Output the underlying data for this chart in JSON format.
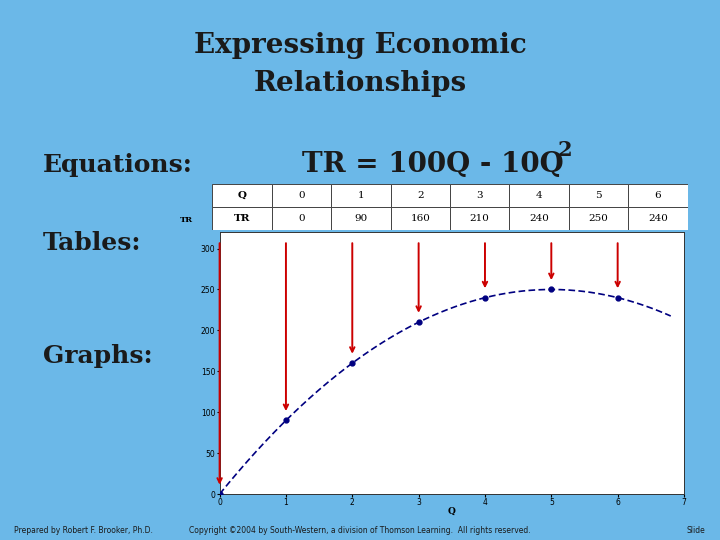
{
  "title_line1": "Expressing Economic",
  "title_line2": "Relationships",
  "equations_label": "Equations:",
  "tables_label": "Tables:",
  "graphs_label": "Graphs:",
  "table_q": [
    0,
    1,
    2,
    3,
    4,
    5,
    6
  ],
  "table_tr": [
    0,
    90,
    160,
    210,
    240,
    250,
    240
  ],
  "graph_q": [
    0,
    1,
    2,
    3,
    4,
    5,
    6
  ],
  "graph_tr": [
    0,
    90,
    160,
    210,
    240,
    250,
    240
  ],
  "background_color": "#6BB8E8",
  "table_bg": "#FFFFFF",
  "graph_bg": "#FFFFFF",
  "footer_left": "Prepared by Robert F. Brooker, Ph.D.",
  "footer_center": "Copyright ©2004 by South-Western, a division of Thomson Learning.  All rights reserved.",
  "footer_right": "Slide",
  "arrow_color": "#CC0000",
  "dot_color": "#000080",
  "line_color": "#000080",
  "title_fontsize": 20,
  "label_fontsize": 18,
  "equation_fontsize": 20
}
